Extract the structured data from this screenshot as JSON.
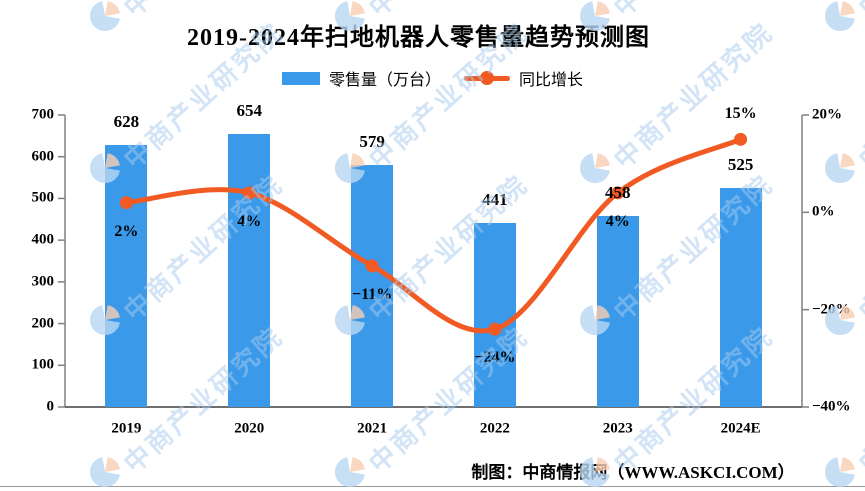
{
  "title": "2019-2024年扫地机器人零售量趋势预测图",
  "footer": "制图：中商情报网（WWW.ASKCI.COM）",
  "watermark": {
    "text": "中商产业研究院"
  },
  "colors": {
    "bar": "#3B99EA",
    "line": "#F15A22",
    "axis": "#808080",
    "axis_bottom": "#6F6F6F",
    "watermark_text": "#A6CBEC",
    "watermark_blue": "#B9D7F1",
    "watermark_orange": "#F8CDB2"
  },
  "chart_data": {
    "type": "combo",
    "categories": [
      "2019",
      "2020",
      "2021",
      "2022",
      "2023",
      "2024E"
    ],
    "series": [
      {
        "name": "零售量（万台）",
        "type": "bar",
        "axis": "left",
        "values": [
          628,
          654,
          579,
          441,
          458,
          525
        ],
        "color": "#3B99EA"
      },
      {
        "name": "同比增长",
        "type": "line",
        "axis": "right",
        "values": [
          2,
          4,
          -11,
          -24,
          4,
          15
        ],
        "labels": [
          "2%",
          "4%",
          "−11%",
          "−24%",
          "4%",
          "15%"
        ],
        "label_position": [
          "below",
          "below",
          "below",
          "below",
          "below",
          "above"
        ],
        "color": "#F15A22"
      }
    ],
    "left_axis": {
      "min": 0,
      "max": 700,
      "ticks": [
        "0",
        "100",
        "200",
        "300",
        "400",
        "500",
        "600",
        "700"
      ]
    },
    "right_axis": {
      "min": -40,
      "max": 20,
      "ticks": [
        "−40%",
        "−20%",
        "0%",
        "20%"
      ]
    },
    "grid": false,
    "legend_position": "top",
    "smooth_line": true
  }
}
